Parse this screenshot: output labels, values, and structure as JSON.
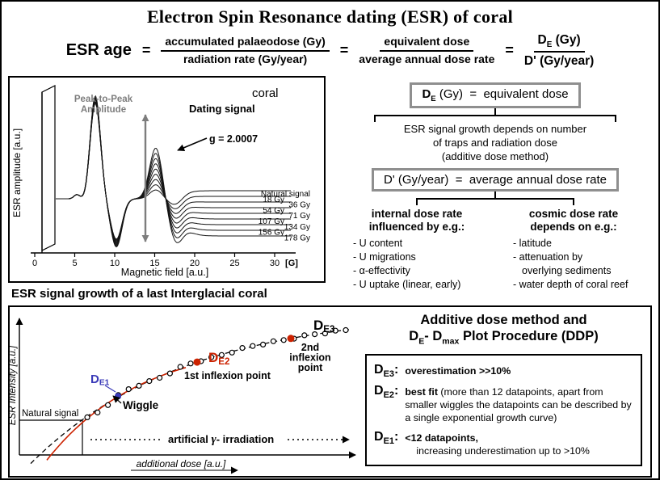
{
  "title": "Electron Spin Resonance dating (ESR) of coral",
  "equation": {
    "lhs": "ESR age",
    "equals": "=",
    "frac1": {
      "num": "accumulated palaeodose (Gy)",
      "den": "radiation rate (Gy/year)"
    },
    "frac2": {
      "num": "equivalent dose",
      "den": "average annual dose rate"
    },
    "frac3": {
      "num_d": "D",
      "num_sub": "E",
      "num_unit": " (Gy)",
      "den": "D' (Gy/year)"
    }
  },
  "definitions": {
    "de_box": {
      "d": "D",
      "sub": "E",
      "rest": " (Gy)  =  equivalent dose"
    },
    "de_note_lines": [
      "ESR signal growth depends on number",
      "of traps and radiation dose",
      "(additive dose method)"
    ],
    "dprime_box": "D' (Gy/year)  =  average annual dose rate",
    "internal": {
      "heading_lines": [
        "internal dose rate",
        "influenced by e.g.:"
      ],
      "items": [
        "- U content",
        "- U migrations",
        "- α-effectivity",
        "- U uptake (linear, early)"
      ]
    },
    "cosmic": {
      "heading_lines": [
        "cosmic dose rate",
        "depends on e.g.:"
      ],
      "items": [
        "- latitude",
        "- attenuation by",
        "overlying sediments",
        "- water depth of coral reef"
      ]
    }
  },
  "ddp": {
    "title_lines": {
      "line1": "Additive dose method and",
      "line2": {
        "d1": "D",
        "s1": "E",
        "mid": "- D",
        "s2": "max",
        "rest": " Plot Procedure (DDP)"
      }
    },
    "colon": ":",
    "items": [
      {
        "d": "D",
        "sub": "E3",
        "text": "overestimation >>10%"
      },
      {
        "d": "D",
        "sub": "E2",
        "lead": "best fit",
        "rest": " (more than 12 datapoints, apart from smaller wiggles the datapoints can be described by a single exponential growth curve)"
      },
      {
        "d": "D",
        "sub": "E1",
        "line1": "<12 datapoints,",
        "line2": "increasing underestimation up to >10%"
      }
    ]
  },
  "chart_data": [
    {
      "type": "line",
      "title": "coral",
      "caption": "ESR signal growth of a last Interglacial coral",
      "xlabel": "Magnetic field [a.u.]",
      "ylabel": "ESR amplitude [a.u.]",
      "x_ticks": [
        0,
        5,
        10,
        15,
        20,
        25,
        30
      ],
      "x_unit": "[G]",
      "x_range": [
        0,
        32
      ],
      "annotations": {
        "peak_to_peak_lines": [
          "Peak-to-Peak",
          "Amplitude"
        ],
        "dating_signal": "Dating signal",
        "g_value": "g = 2.0007"
      },
      "series_labels": [
        "Natural signal",
        "18 Gy",
        "36 Gy",
        "54 Gy",
        "71 Gy",
        "107 Gy",
        "134 Gy",
        "156 Gy",
        "178 Gy"
      ],
      "description": "Nine overlaid first-derivative ESR spectra; the dating-signal peak-to-peak amplitude grows with added gamma dose from the natural signal up to 178 Gy"
    },
    {
      "type": "scatter",
      "xlabel": "additional dose [a.u.]",
      "ylabel": "ESR Intensity [a.u.]",
      "curve": "saturating single-exponential growth fit (dashed) through ~26 open-circle datapoints; red curve = early-fit underestimation",
      "labels": {
        "natural": "Natural signal",
        "wiggle": "Wiggle",
        "de1": {
          "main": "D",
          "sub": "E1",
          "color": "#3a3ab8"
        },
        "de2": {
          "main": "D",
          "sub": "E2",
          "color": "#cc2200"
        },
        "de3": {
          "main": "D",
          "sub": "E3",
          "color": "#000000"
        },
        "inflexion1": "1st inflexion point",
        "inflexion2_lines": [
          "2nd",
          "inflexion",
          "point"
        ],
        "irradiation_parts": [
          "artificial ",
          "γ",
          "- irradiation"
        ]
      }
    }
  ]
}
